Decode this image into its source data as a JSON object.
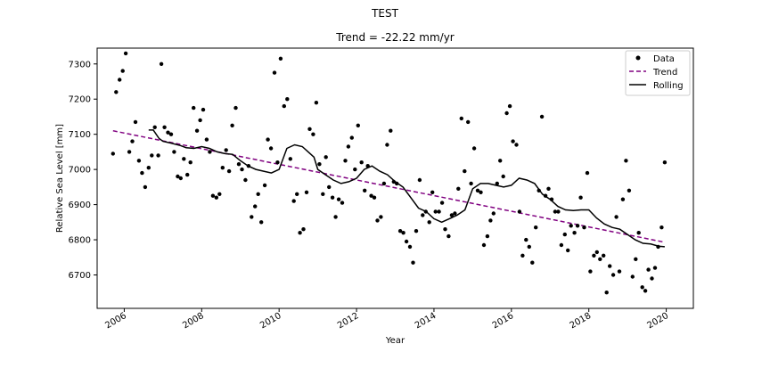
{
  "figure": {
    "suptitle": "TEST"
  },
  "chart_data": {
    "type": "scatter",
    "title": "Trend = -22.22 mm/yr",
    "xlabel": "Year",
    "ylabel": "Relative Sea Level [mm]",
    "xlim": [
      2005.3,
      2020.7
    ],
    "ylim": [
      6605,
      7345
    ],
    "x_ticks": [
      2006,
      2008,
      2010,
      2012,
      2014,
      2016,
      2018,
      2020
    ],
    "x_tick_labels": [
      "2006",
      "2008",
      "2010",
      "2012",
      "2014",
      "2016",
      "2018",
      "2020"
    ],
    "y_ticks": [
      6700,
      6800,
      6900,
      7000,
      7100,
      7200,
      7300
    ],
    "y_tick_labels": [
      "6700",
      "6800",
      "6900",
      "7000",
      "7100",
      "7200",
      "7300"
    ],
    "grid": false,
    "legend_position": "top-right",
    "legend": [
      "Data",
      "Trend",
      "Rolling"
    ],
    "colors": {
      "data": "#000000",
      "trend": "#800080",
      "rolling": "#000000"
    },
    "series": [
      {
        "name": "Data",
        "style": "points",
        "x": [
          2005.71,
          2005.79,
          2005.88,
          2005.96,
          2006.04,
          2006.13,
          2006.21,
          2006.29,
          2006.38,
          2006.46,
          2006.54,
          2006.63,
          2006.71,
          2006.79,
          2006.88,
          2006.96,
          2007.04,
          2007.13,
          2007.21,
          2007.29,
          2007.38,
          2007.46,
          2007.54,
          2007.63,
          2007.71,
          2007.79,
          2007.88,
          2007.96,
          2008.04,
          2008.13,
          2008.21,
          2008.29,
          2008.38,
          2008.46,
          2008.54,
          2008.63,
          2008.71,
          2008.79,
          2008.88,
          2008.96,
          2009.04,
          2009.13,
          2009.21,
          2009.29,
          2009.38,
          2009.46,
          2009.54,
          2009.63,
          2009.71,
          2009.79,
          2009.88,
          2009.96,
          2010.04,
          2010.13,
          2010.21,
          2010.29,
          2010.38,
          2010.46,
          2010.54,
          2010.63,
          2010.71,
          2010.79,
          2010.88,
          2010.96,
          2011.04,
          2011.13,
          2011.21,
          2011.29,
          2011.38,
          2011.46,
          2011.54,
          2011.63,
          2011.71,
          2011.79,
          2011.88,
          2011.96,
          2012.04,
          2012.13,
          2012.21,
          2012.29,
          2012.38,
          2012.46,
          2012.54,
          2012.63,
          2012.71,
          2012.79,
          2012.88,
          2012.96,
          2013.04,
          2013.13,
          2013.21,
          2013.29,
          2013.38,
          2013.46,
          2013.54,
          2013.63,
          2013.71,
          2013.79,
          2013.88,
          2013.96,
          2014.04,
          2014.13,
          2014.21,
          2014.29,
          2014.38,
          2014.46,
          2014.54,
          2014.63,
          2014.71,
          2014.79,
          2014.88,
          2014.96,
          2015.04,
          2015.13,
          2015.21,
          2015.29,
          2015.38,
          2015.46,
          2015.54,
          2015.63,
          2015.71,
          2015.79,
          2015.88,
          2015.96,
          2016.04,
          2016.13,
          2016.21,
          2016.29,
          2016.38,
          2016.46,
          2016.54,
          2016.63,
          2016.71,
          2016.79,
          2016.88,
          2016.96,
          2017.04,
          2017.13,
          2017.21,
          2017.29,
          2017.38,
          2017.46,
          2017.54,
          2017.63,
          2017.71,
          2017.79,
          2017.88,
          2017.96,
          2018.04,
          2018.13,
          2018.21,
          2018.29,
          2018.38,
          2018.46,
          2018.54,
          2018.63,
          2018.71,
          2018.79,
          2018.88,
          2018.96,
          2019.04,
          2019.13,
          2019.21,
          2019.29,
          2019.38,
          2019.46,
          2019.54,
          2019.63,
          2019.71,
          2019.79,
          2019.88,
          2019.96
        ],
        "y": [
          7045,
          7220,
          7255,
          7280,
          7330,
          7050,
          7080,
          7135,
          7025,
          6990,
          6950,
          7005,
          7040,
          7120,
          7040,
          7300,
          7120,
          7105,
          7100,
          7050,
          6980,
          6975,
          7030,
          6985,
          7020,
          7175,
          7110,
          7140,
          7170,
          7085,
          7050,
          6925,
          6920,
          6930,
          7005,
          7055,
          6995,
          7125,
          7175,
          7015,
          7000,
          6970,
          7010,
          6865,
          6895,
          6930,
          6850,
          6955,
          7085,
          7060,
          7275,
          7020,
          7315,
          7180,
          7200,
          7030,
          6910,
          6930,
          6820,
          6830,
          6935,
          7115,
          7100,
          7190,
          7015,
          6930,
          7035,
          6950,
          6920,
          6865,
          6915,
          6905,
          7025,
          7065,
          7090,
          7000,
          7125,
          7020,
          6940,
          7010,
          6925,
          6920,
          6855,
          6865,
          6960,
          7070,
          7110,
          6965,
          6960,
          6825,
          6820,
          6795,
          6780,
          6735,
          6825,
          6970,
          6870,
          6880,
          6850,
          6935,
          6880,
          6880,
          6905,
          6830,
          6810,
          6870,
          6875,
          6945,
          7145,
          6995,
          7135,
          6960,
          7060,
          6940,
          6935,
          6785,
          6810,
          6855,
          6875,
          6960,
          7025,
          6980,
          7160,
          7180,
          7080,
          7070,
          6880,
          6755,
          6800,
          6780,
          6735,
          6835,
          6940,
          7150,
          6925,
          6945,
          6915,
          6880,
          6880,
          6785,
          6815,
          6770,
          6840,
          6820,
          6840,
          6920,
          6835,
          6990,
          6710,
          6755,
          6765,
          6745,
          6755,
          6650,
          6725,
          6700,
          6865,
          6710,
          6915,
          7025,
          6940,
          6695,
          6745,
          6820,
          6665,
          6655,
          6715,
          6690,
          6720,
          6780,
          6835,
          7020
        ]
      },
      {
        "name": "Trend",
        "style": "dashed",
        "x": [
          2005.71,
          2019.96
        ],
        "y": [
          7110,
          6793
        ]
      },
      {
        "name": "Rolling",
        "style": "line",
        "x": [
          2006.63,
          2006.75,
          2006.9,
          2007.0,
          2007.2,
          2007.45,
          2007.6,
          2007.8,
          2008.0,
          2008.2,
          2008.4,
          2008.6,
          2008.8,
          2009.0,
          2009.2,
          2009.4,
          2009.6,
          2009.8,
          2010.0,
          2010.2,
          2010.4,
          2010.6,
          2010.75,
          2010.9,
          2011.0,
          2011.2,
          2011.4,
          2011.6,
          2011.8,
          2012.0,
          2012.2,
          2012.4,
          2012.6,
          2012.8,
          2013.0,
          2013.2,
          2013.4,
          2013.6,
          2013.8,
          2014.0,
          2014.2,
          2014.4,
          2014.6,
          2014.8,
          2015.0,
          2015.2,
          2015.4,
          2015.6,
          2015.8,
          2016.0,
          2016.2,
          2016.4,
          2016.6,
          2016.8,
          2017.0,
          2017.2,
          2017.4,
          2017.6,
          2017.8,
          2018.0,
          2018.2,
          2018.4,
          2018.6,
          2018.8,
          2019.0,
          2019.2,
          2019.4,
          2019.6,
          2019.8,
          2019.96
        ],
        "y": [
          7112,
          7112,
          7088,
          7080,
          7075,
          7068,
          7062,
          7060,
          7065,
          7060,
          7050,
          7045,
          7043,
          7025,
          7010,
          7000,
          6995,
          6990,
          7000,
          7060,
          7070,
          7065,
          7050,
          7035,
          7000,
          6985,
          6970,
          6960,
          6965,
          6975,
          7000,
          7010,
          6995,
          6985,
          6965,
          6950,
          6920,
          6890,
          6880,
          6860,
          6850,
          6860,
          6870,
          6885,
          6945,
          6960,
          6960,
          6955,
          6950,
          6955,
          6975,
          6970,
          6960,
          6930,
          6915,
          6895,
          6885,
          6883,
          6885,
          6885,
          6862,
          6845,
          6835,
          6830,
          6815,
          6800,
          6790,
          6788,
          6782,
          6780
        ]
      }
    ]
  }
}
